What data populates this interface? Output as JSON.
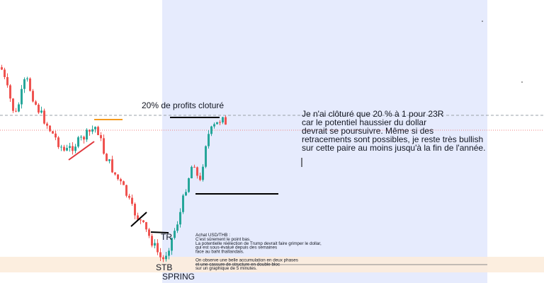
{
  "annotations": {
    "profit": "20% de profits cloturé",
    "commentary": [
      "Je n'ai clôturé que 20 % à 1 pour 23R",
      "car le potentiel haussier du dollar",
      "devrait se poursuivre. Même si des",
      "retracements sont possibles, je reste très bullish",
      "sur cette paire au moins jusqu'à la fin de l'année."
    ],
    "note": [
      "Achat USD/THB :",
      "C'est sûrement le point bas.",
      "La potentielle réélection de Trump devrait faire grimper le dollar,",
      "qui est sous-évalué depuis des semaines",
      "face au baht thaïlandais.",
      "",
      "On observe une belle accumulation en deux phases",
      "et une cassure de structure en double bloc",
      " sur un graphique de 5 minutes."
    ],
    "tr": "TR",
    "stb": "STB",
    "spring": "SPRING"
  }
}
